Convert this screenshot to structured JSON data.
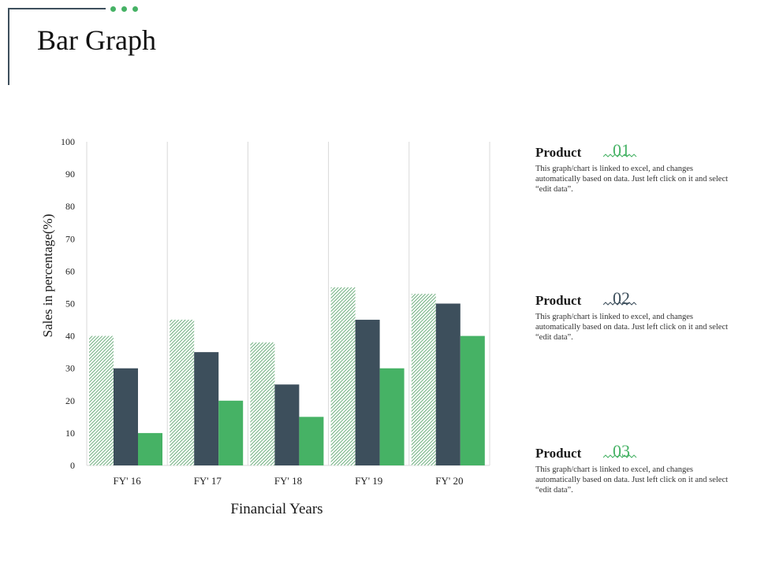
{
  "page": {
    "title": "Bar Graph"
  },
  "colors": {
    "accent": "#46b265",
    "dark": "#3d4f5c",
    "hatch": "#4a9a5e",
    "grid": "#d9d9d9"
  },
  "products": [
    {
      "label": "Product",
      "number": "01",
      "description": "This graph/chart is linked to excel, and changes automatically based on data. Just left click on it and select “edit data”."
    },
    {
      "label": "Product",
      "number": "02",
      "description": "This graph/chart is linked to excel, and changes automatically based on data. Just left click on it and select “edit data”."
    },
    {
      "label": "Product",
      "number": "03",
      "description": "This graph/chart is linked to excel, and changes automatically based on data. Just left click on it and select “edit data”."
    }
  ],
  "chart_data": {
    "type": "bar",
    "categories": [
      "FY' 16",
      "FY' 17",
      "FY' 18",
      "FY' 19",
      "FY' 20"
    ],
    "series": [
      {
        "values": [
          40,
          45,
          38,
          55,
          53
        ],
        "style": "hatched-green"
      },
      {
        "values": [
          30,
          35,
          25,
          45,
          50
        ],
        "style": "dark-slate"
      },
      {
        "values": [
          10,
          20,
          15,
          30,
          40
        ],
        "style": "green"
      }
    ],
    "xlabel": "Financial Years",
    "ylabel": "Sales in percentage(%)",
    "ylim": [
      0,
      100
    ],
    "yticks": [
      0,
      10,
      20,
      30,
      40,
      50,
      60,
      70,
      80,
      90,
      100
    ],
    "grid": "vertical category separators",
    "legend": "none"
  }
}
